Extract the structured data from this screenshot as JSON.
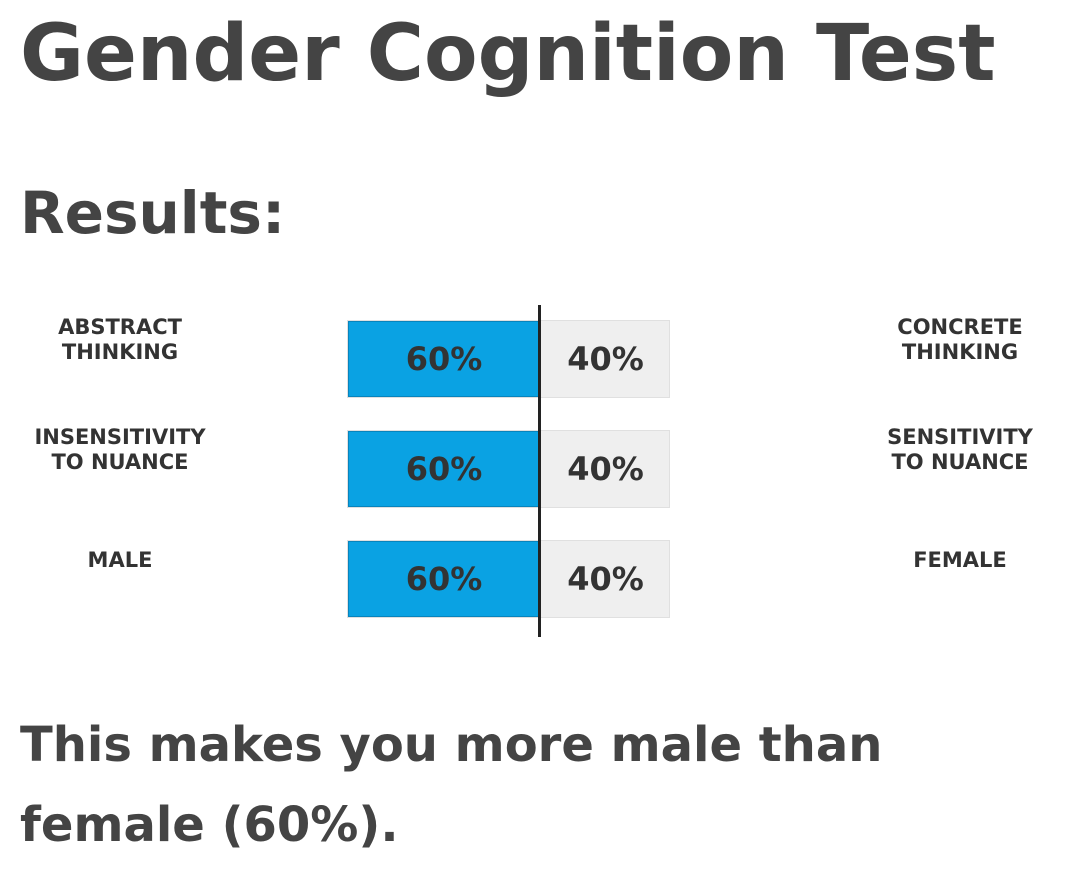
{
  "page": {
    "title": "Gender Cognition Test",
    "results_heading": "Results:",
    "conclusion": "This makes you more male than female (60%)."
  },
  "colors": {
    "bar_fill": "#0aa2e3",
    "bar_track": "#efefef",
    "divider": "#222222",
    "text": "#444444"
  },
  "results": [
    {
      "left_label": "ABSTRACT\nTHINKING",
      "right_label": "CONCRETE\nTHINKING",
      "left_value": "60%",
      "right_value": "40%",
      "left_fraction": 0.6
    },
    {
      "left_label": "INSENSITIVITY\nTO NUANCE",
      "right_label": "SENSITIVITY\nTO NUANCE",
      "left_value": "60%",
      "right_value": "40%",
      "left_fraction": 0.6
    },
    {
      "left_label": "MALE",
      "right_label": "FEMALE",
      "left_value": "60%",
      "right_value": "40%",
      "left_fraction": 0.6
    }
  ]
}
